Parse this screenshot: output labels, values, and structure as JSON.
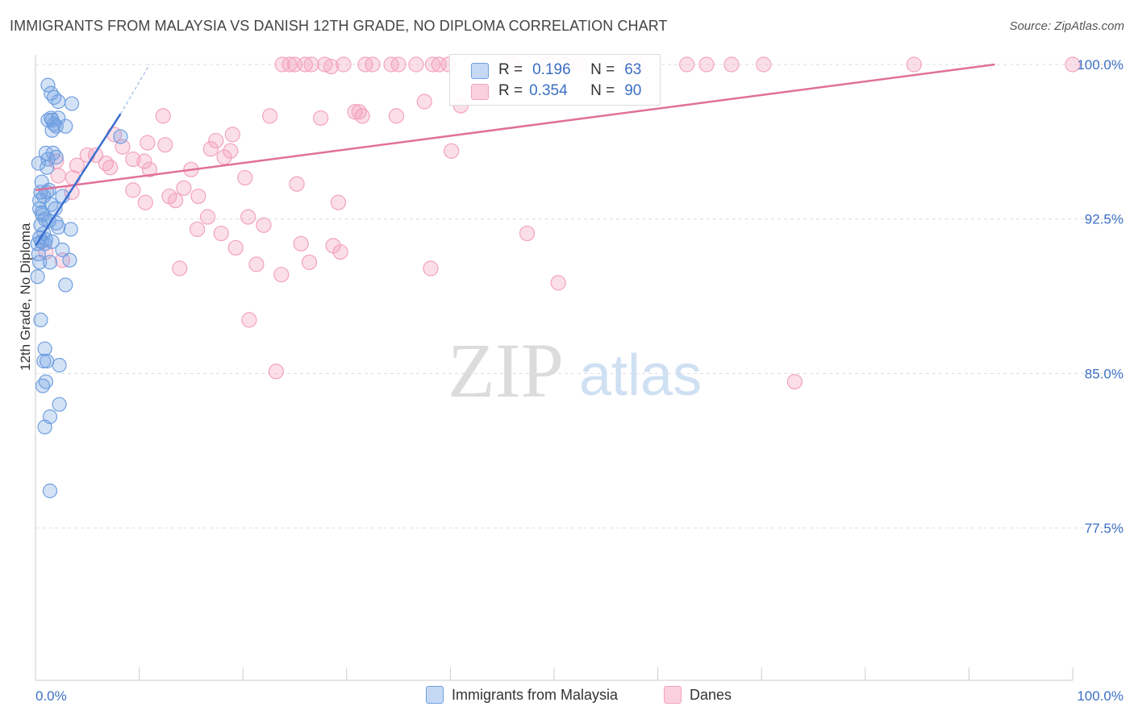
{
  "title": "IMMIGRANTS FROM MALAYSIA VS DANISH 12TH GRADE, NO DIPLOMA CORRELATION CHART",
  "source": "Source: ZipAtlas.com",
  "watermark": {
    "zip": "ZIP",
    "atlas": "atlas"
  },
  "legend_stats": [
    {
      "r_label": "R =",
      "r_value": "0.196",
      "n_label": "N =",
      "n_value": "63"
    },
    {
      "r_label": "R =",
      "r_value": "0.354",
      "n_label": "N =",
      "n_value": "90"
    }
  ],
  "chart_data": {
    "type": "scatter",
    "title": "IMMIGRANTS FROM MALAYSIA VS DANISH 12TH GRADE, NO DIPLOMA CORRELATION CHART",
    "xlabel": "",
    "ylabel": "12th Grade, No Diploma",
    "xlim": [
      0,
      100
    ],
    "ylim": [
      70,
      101
    ],
    "x_tick_labels": [
      "0.0%",
      "100.0%"
    ],
    "y_ticks": [
      77.5,
      85.0,
      92.5,
      100.0
    ],
    "y_tick_labels": [
      "77.5%",
      "85.0%",
      "92.5%",
      "100.0%"
    ],
    "colors": {
      "malaysia": "#6f9fe0",
      "danes": "#f3a2bd",
      "malaysia_line": "#3a6fd0",
      "danes_line": "#e0709a"
    },
    "series": [
      {
        "name": "Immigrants from Malaysia",
        "R": 0.196,
        "N": 63,
        "trend": {
          "x": [
            0,
            8.2
          ],
          "y": [
            91.2,
            97.6
          ]
        },
        "trend_dashed": {
          "x": [
            8.2,
            11
          ],
          "y": [
            97.6,
            100.0
          ]
        },
        "points": [
          [
            1.2,
            99.0
          ],
          [
            1.5,
            98.6
          ],
          [
            1.8,
            98.4
          ],
          [
            3.5,
            98.1
          ],
          [
            2.2,
            98.2
          ],
          [
            1.2,
            97.3
          ],
          [
            1.5,
            97.4
          ],
          [
            2.0,
            97.0
          ],
          [
            2.2,
            97.4
          ],
          [
            2.9,
            97.0
          ],
          [
            1.6,
            97.3
          ],
          [
            1.0,
            95.7
          ],
          [
            1.7,
            95.7
          ],
          [
            1.1,
            95.0
          ],
          [
            2.0,
            95.5
          ],
          [
            8.2,
            96.5
          ],
          [
            0.5,
            93.8
          ],
          [
            0.8,
            93.6
          ],
          [
            1.1,
            93.8
          ],
          [
            1.5,
            93.2
          ],
          [
            2.6,
            93.6
          ],
          [
            0.4,
            93.0
          ],
          [
            0.6,
            92.8
          ],
          [
            0.9,
            92.5
          ],
          [
            1.3,
            92.4
          ],
          [
            0.5,
            92.2
          ],
          [
            2.2,
            92.1
          ],
          [
            3.4,
            92.0
          ],
          [
            0.4,
            91.6
          ],
          [
            0.6,
            91.4
          ],
          [
            0.9,
            91.3
          ],
          [
            1.6,
            91.4
          ],
          [
            2.6,
            91.0
          ],
          [
            0.2,
            91.3
          ],
          [
            0.4,
            90.4
          ],
          [
            1.4,
            90.4
          ],
          [
            3.3,
            90.5
          ],
          [
            0.2,
            89.7
          ],
          [
            2.9,
            89.3
          ],
          [
            0.5,
            87.6
          ],
          [
            0.9,
            86.2
          ],
          [
            0.8,
            85.6
          ],
          [
            1.1,
            85.6
          ],
          [
            2.3,
            85.4
          ],
          [
            0.7,
            84.4
          ],
          [
            1.0,
            84.6
          ],
          [
            2.3,
            83.5
          ],
          [
            1.4,
            82.9
          ],
          [
            0.9,
            82.4
          ],
          [
            1.4,
            79.3
          ],
          [
            0.3,
            95.2
          ],
          [
            1.3,
            93.9
          ],
          [
            0.7,
            92.7
          ],
          [
            1.9,
            93.0
          ],
          [
            0.3,
            90.8
          ],
          [
            1.0,
            91.5
          ],
          [
            2.0,
            92.3
          ],
          [
            0.6,
            94.3
          ],
          [
            1.2,
            95.4
          ],
          [
            0.4,
            93.4
          ],
          [
            1.8,
            97.1
          ],
          [
            0.8,
            91.8
          ],
          [
            1.6,
            96.8
          ]
        ]
      },
      {
        "name": "Danes",
        "R": 0.354,
        "N": 90,
        "trend": {
          "x": [
            0,
            92.5
          ],
          "y": [
            93.9,
            100.0
          ]
        },
        "points": [
          [
            23.8,
            100.0
          ],
          [
            24.5,
            100.0
          ],
          [
            25.0,
            100.0
          ],
          [
            26.0,
            100.0
          ],
          [
            26.6,
            100.0
          ],
          [
            27.9,
            100.0
          ],
          [
            28.5,
            99.9
          ],
          [
            29.7,
            100.0
          ],
          [
            31.8,
            100.0
          ],
          [
            32.5,
            100.0
          ],
          [
            34.3,
            100.0
          ],
          [
            35.0,
            100.0
          ],
          [
            36.7,
            100.0
          ],
          [
            38.3,
            100.0
          ],
          [
            38.9,
            100.0
          ],
          [
            39.8,
            100.0
          ],
          [
            46.0,
            100.0
          ],
          [
            49.4,
            100.0
          ],
          [
            51.0,
            100.0
          ],
          [
            52.5,
            100.0
          ],
          [
            57.3,
            100.0
          ],
          [
            58.1,
            100.0
          ],
          [
            62.8,
            100.0
          ],
          [
            64.7,
            100.0
          ],
          [
            67.1,
            100.0
          ],
          [
            70.2,
            100.0
          ],
          [
            84.7,
            100.0
          ],
          [
            100.0,
            100.0
          ],
          [
            12.3,
            97.5
          ],
          [
            22.6,
            97.5
          ],
          [
            27.5,
            97.4
          ],
          [
            30.8,
            97.7
          ],
          [
            31.2,
            97.7
          ],
          [
            31.5,
            97.5
          ],
          [
            34.8,
            97.5
          ],
          [
            37.5,
            98.2
          ],
          [
            41.0,
            98.0
          ],
          [
            7.6,
            96.6
          ],
          [
            10.8,
            96.2
          ],
          [
            12.5,
            96.1
          ],
          [
            17.4,
            96.3
          ],
          [
            16.9,
            95.9
          ],
          [
            18.8,
            95.8
          ],
          [
            8.4,
            96.0
          ],
          [
            5.0,
            95.6
          ],
          [
            6.8,
            95.2
          ],
          [
            4.0,
            95.1
          ],
          [
            7.2,
            95.0
          ],
          [
            9.4,
            95.4
          ],
          [
            10.5,
            95.3
          ],
          [
            11.0,
            94.9
          ],
          [
            15.0,
            94.9
          ],
          [
            2.2,
            94.6
          ],
          [
            3.6,
            94.5
          ],
          [
            2.0,
            95.3
          ],
          [
            20.2,
            94.5
          ],
          [
            25.2,
            94.2
          ],
          [
            9.4,
            93.9
          ],
          [
            10.6,
            93.3
          ],
          [
            12.9,
            93.6
          ],
          [
            13.5,
            93.4
          ],
          [
            14.3,
            94.0
          ],
          [
            15.7,
            93.6
          ],
          [
            29.2,
            93.3
          ],
          [
            3.5,
            93.8
          ],
          [
            16.6,
            92.6
          ],
          [
            20.5,
            92.6
          ],
          [
            22.0,
            92.2
          ],
          [
            15.6,
            92.0
          ],
          [
            17.9,
            91.8
          ],
          [
            19.3,
            91.1
          ],
          [
            25.6,
            91.3
          ],
          [
            28.7,
            91.2
          ],
          [
            29.4,
            90.9
          ],
          [
            47.4,
            91.8
          ],
          [
            26.4,
            90.4
          ],
          [
            21.3,
            90.3
          ],
          [
            13.9,
            90.1
          ],
          [
            38.1,
            90.1
          ],
          [
            50.4,
            89.4
          ],
          [
            23.7,
            89.8
          ],
          [
            20.6,
            87.6
          ],
          [
            23.2,
            85.1
          ],
          [
            73.2,
            84.6
          ],
          [
            1.0,
            90.9
          ],
          [
            2.6,
            90.5
          ],
          [
            5.8,
            95.6
          ],
          [
            18.2,
            95.5
          ],
          [
            19.0,
            96.6
          ],
          [
            40.1,
            95.8
          ]
        ]
      }
    ]
  },
  "bottom_legend": [
    "Immigrants from Malaysia",
    "Danes"
  ]
}
